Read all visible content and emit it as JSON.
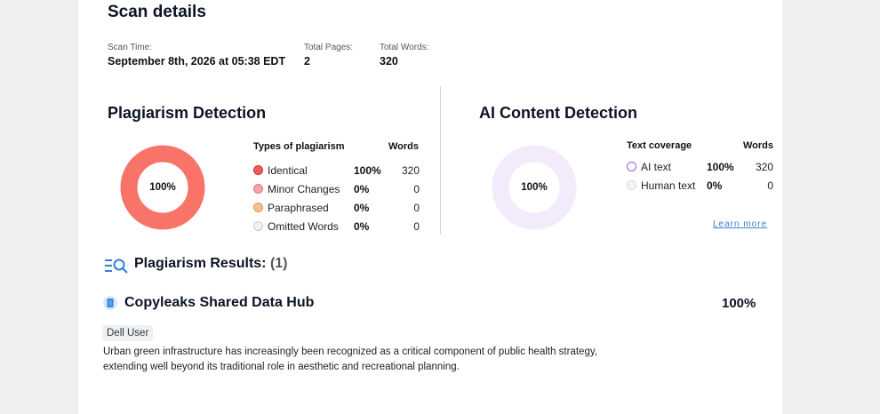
{
  "scan_details": {
    "title": "Scan details",
    "scan_time_label": "Scan Time:",
    "scan_time_value": "September 8th, 2026 at 05:38 EDT",
    "total_pages_label": "Total Pages:",
    "total_pages_value": "2",
    "total_words_label": "Total Words:",
    "total_words_value": "320"
  },
  "plagiarism": {
    "title": "Plagiarism Detection",
    "donut_label": "100%",
    "donut_fraction": 1.0,
    "donut_color": "#f87368",
    "header_types": "Types of plagiarism",
    "header_words": "Words",
    "rows": [
      {
        "label": "Identical",
        "pct": "100%",
        "words": "320",
        "color": "#f25b5b",
        "border": "#c33"
      },
      {
        "label": "Minor Changes",
        "pct": "0%",
        "words": "0",
        "color": "#f8a3a3",
        "border": "#d97a7a"
      },
      {
        "label": "Paraphrased",
        "pct": "0%",
        "words": "0",
        "color": "#f7c08f",
        "border": "#d99a60"
      },
      {
        "label": "Omitted Words",
        "pct": "0%",
        "words": "0",
        "color": "#f1f1f1",
        "border": "#ccc"
      }
    ]
  },
  "ai": {
    "title": "AI Content Detection",
    "donut_label": "100%",
    "donut_color": "#f3eafc",
    "header_coverage": "Text coverage",
    "header_words": "Words",
    "rows": [
      {
        "label": "AI text",
        "pct": "100%",
        "words": "320",
        "color": "#ffffff",
        "border": "#9b5ad6"
      },
      {
        "label": "Human text",
        "pct": "0%",
        "words": "0",
        "color": "#f4f4f4",
        "border": "#d8d8d8"
      }
    ],
    "learn_more": "Learn more"
  },
  "results": {
    "title": "Plagiarism Results:",
    "count": "(1)",
    "icon": "list-search-icon",
    "source": {
      "icon": "document-icon",
      "name": "Copyleaks Shared Data Hub",
      "pct": "100%",
      "tag": "Dell User",
      "excerpt_line1": "Urban green infrastructure has increasingly been recognized as a critical component of public health strategy,",
      "excerpt_line2": "extending well beyond its traditional role in aesthetic and recreational planning."
    }
  }
}
